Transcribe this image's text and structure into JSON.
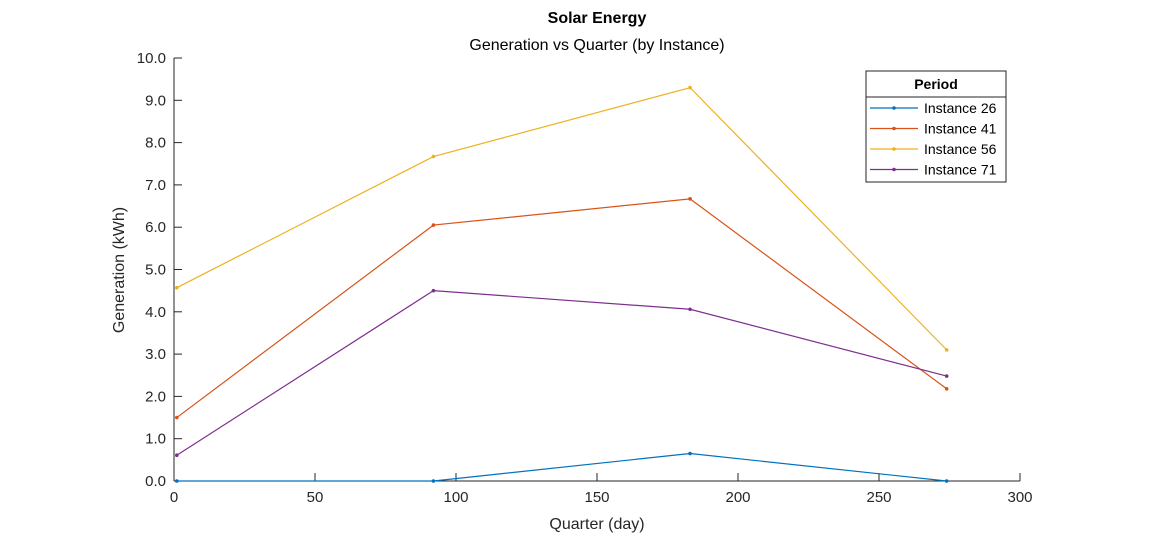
{
  "chart_data": {
    "type": "line",
    "title": "Solar Energy",
    "subtitle": "Generation vs Quarter (by Instance)",
    "xlabel": "Quarter (day)",
    "ylabel": "Generation (kWh)",
    "xlim": [
      0,
      300
    ],
    "ylim": [
      0,
      10
    ],
    "xticks": [
      "0",
      "50",
      "100",
      "150",
      "200",
      "250",
      "300"
    ],
    "yticks": [
      "0.0",
      "1.0",
      "2.0",
      "3.0",
      "4.0",
      "5.0",
      "6.0",
      "7.0",
      "8.0",
      "9.0",
      "10.0"
    ],
    "grid": false,
    "legend": {
      "title": "Period",
      "placement": "top-right"
    },
    "x": [
      1,
      92,
      183,
      274
    ],
    "series": [
      {
        "name": "Instance 26",
        "color": "#0072BD",
        "values": [
          0.0,
          0.0,
          0.65,
          0.0
        ]
      },
      {
        "name": "Instance 41",
        "color": "#D95319",
        "values": [
          1.5,
          6.05,
          6.67,
          2.18
        ]
      },
      {
        "name": "Instance 56",
        "color": "#EDB120",
        "values": [
          4.57,
          7.67,
          9.3,
          3.1
        ]
      },
      {
        "name": "Instance 71",
        "color": "#7E2F8E",
        "values": [
          0.61,
          4.5,
          4.06,
          2.48
        ]
      }
    ]
  }
}
